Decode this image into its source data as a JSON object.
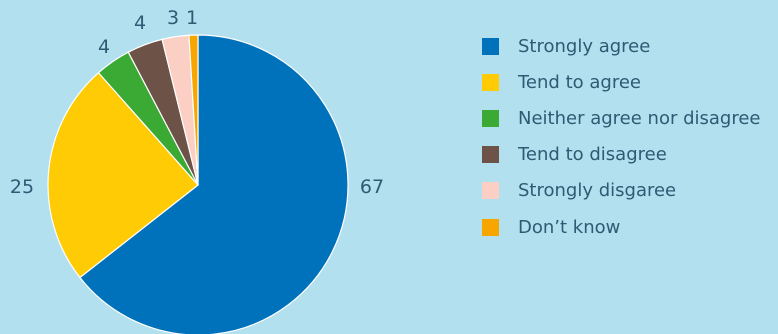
{
  "chart_data": {
    "type": "pie",
    "categories": [
      "Strongly agree",
      "Tend to agree",
      "Neither agree nor disagree",
      "Tend to disagree",
      "Strongly disgaree",
      "Don’t know"
    ],
    "values": [
      67,
      25,
      4,
      4,
      3,
      1
    ],
    "colors": [
      "#0072bc",
      "#ffcb05",
      "#3aaa35",
      "#6d5247",
      "#fbcfc4",
      "#f7a600"
    ],
    "data_labels": [
      "67",
      "25",
      "4",
      "4",
      "3",
      "1"
    ],
    "legend_position": "right",
    "start_angle": "top, clockwise"
  }
}
